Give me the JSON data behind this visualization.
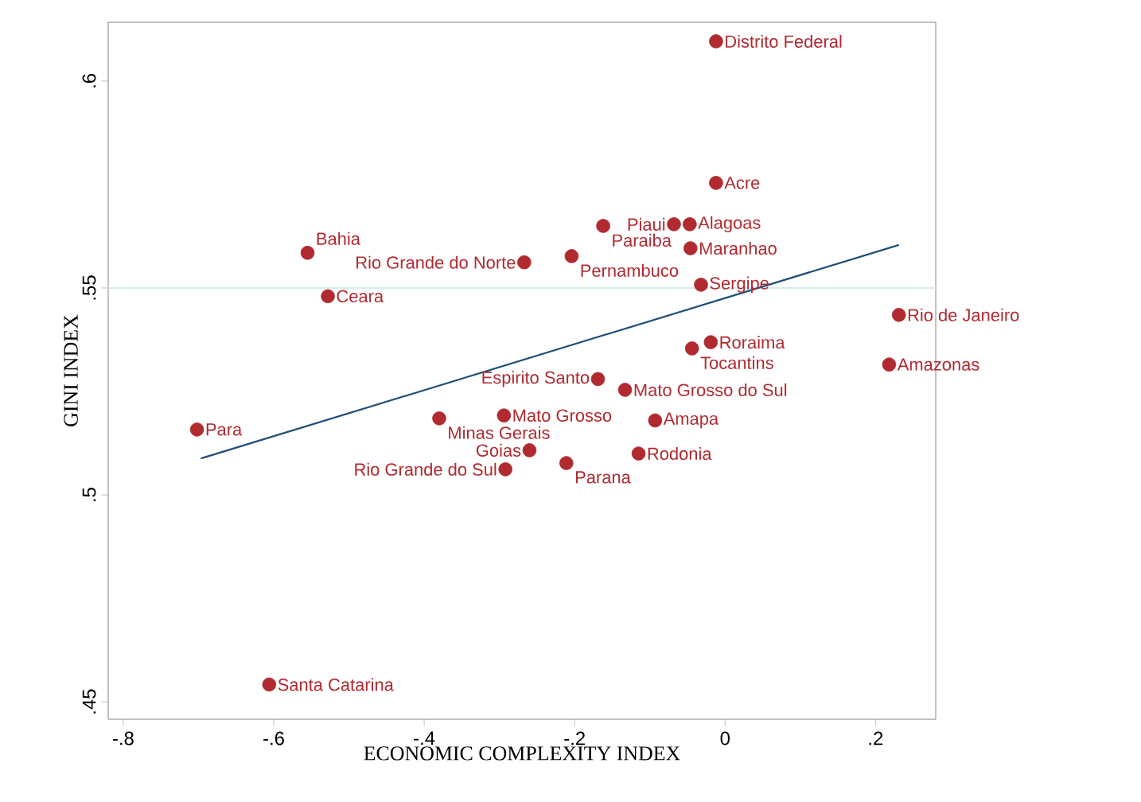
{
  "chart_data": {
    "type": "scatter",
    "xlabel": "ECONOMIC COMPLEXITY INDEX",
    "ylabel": "GINI INDEX",
    "xlim": [
      -0.82,
      0.28
    ],
    "ylim": [
      0.4458,
      0.6142
    ],
    "xticks": [
      {
        "value": -0.8,
        "label": "-.8"
      },
      {
        "value": -0.6,
        "label": "-.6"
      },
      {
        "value": -0.4,
        "label": "-.4"
      },
      {
        "value": -0.2,
        "label": "-.2"
      },
      0,
      {
        "value": 0.2,
        "label": ".2"
      }
    ],
    "yticks": [
      {
        "value": 0.45,
        "label": ".45"
      },
      {
        "value": 0.5,
        "label": ".5"
      },
      {
        "value": 0.55,
        "label": ".55"
      },
      {
        "value": 0.6,
        "label": ".6"
      }
    ],
    "marker": "circle",
    "grid": false,
    "ref_lines": [
      {
        "axis": "y",
        "value": 0.55,
        "color": "#d9ecee"
      }
    ],
    "series": [
      {
        "color": "#b02a30",
        "x": [
          -0.012,
          -0.012,
          -0.162,
          -0.068,
          -0.047,
          -0.046,
          -0.204,
          -0.267,
          -0.032,
          -0.555,
          -0.528,
          0.231,
          0.218,
          -0.019,
          -0.044,
          -0.169,
          -0.133,
          -0.702,
          -0.38,
          -0.294,
          -0.093,
          -0.26,
          -0.211,
          -0.115,
          -0.292,
          -0.606
        ],
        "values": [
          0.6096,
          0.5754,
          0.565,
          0.5654,
          0.5654,
          0.5596,
          0.5577,
          0.5562,
          0.5508,
          0.5585,
          0.548,
          0.5435,
          0.5315,
          0.5369,
          0.5354,
          0.528,
          0.5254,
          0.5158,
          0.5185,
          0.5192,
          0.518,
          0.5108,
          0.5077,
          0.51,
          0.5062,
          0.4542
        ]
      },
      {
        "type": "line",
        "color": "#1f4e79",
        "marker": "none",
        "x": [
          -0.697,
          0.231
        ],
        "values": [
          0.5088,
          0.5604
        ]
      }
    ],
    "annotations": [
      {
        "text": "Distrito Federal",
        "x": -0.012,
        "y": 0.6096
      },
      {
        "text": "Acre",
        "x": -0.012,
        "y": 0.5754
      },
      {
        "text": "Paraiba",
        "x": -0.162,
        "y": 0.565
      },
      {
        "text": "Piaui",
        "x": -0.068,
        "y": 0.5654
      },
      {
        "text": "Alagoas",
        "x": -0.047,
        "y": 0.5654
      },
      {
        "text": "Maranhao",
        "x": -0.046,
        "y": 0.5596
      },
      {
        "text": "Pernambuco",
        "x": -0.204,
        "y": 0.5577
      },
      {
        "text": "Rio Grande do Norte",
        "x": -0.267,
        "y": 0.5562
      },
      {
        "text": "Sergipe",
        "x": -0.032,
        "y": 0.5508
      },
      {
        "text": "Bahia",
        "x": -0.555,
        "y": 0.5585
      },
      {
        "text": "Ceara",
        "x": -0.528,
        "y": 0.548
      },
      {
        "text": "Rio de Janeiro",
        "x": 0.231,
        "y": 0.5435
      },
      {
        "text": "Amazonas",
        "x": 0.218,
        "y": 0.5315
      },
      {
        "text": "Roraima",
        "x": -0.019,
        "y": 0.5369
      },
      {
        "text": "Tocantins",
        "x": -0.044,
        "y": 0.5354
      },
      {
        "text": "Espirito Santo",
        "x": -0.169,
        "y": 0.528
      },
      {
        "text": "Mato Grosso do Sul",
        "x": -0.133,
        "y": 0.5254
      },
      {
        "text": "Para",
        "x": -0.702,
        "y": 0.5158
      },
      {
        "text": "Minas Gerais",
        "x": -0.38,
        "y": 0.5185
      },
      {
        "text": "Mato Grosso",
        "x": -0.294,
        "y": 0.5192
      },
      {
        "text": "Amapa",
        "x": -0.093,
        "y": 0.518
      },
      {
        "text": "Goias",
        "x": -0.26,
        "y": 0.5108
      },
      {
        "text": "Parana",
        "x": -0.211,
        "y": 0.5077
      },
      {
        "text": "Rodonia",
        "x": -0.115,
        "y": 0.51
      },
      {
        "text": "Rio Grande do Sul",
        "x": -0.292,
        "y": 0.5062
      },
      {
        "text": "Santa Catarina",
        "x": -0.606,
        "y": 0.4542
      }
    ]
  }
}
